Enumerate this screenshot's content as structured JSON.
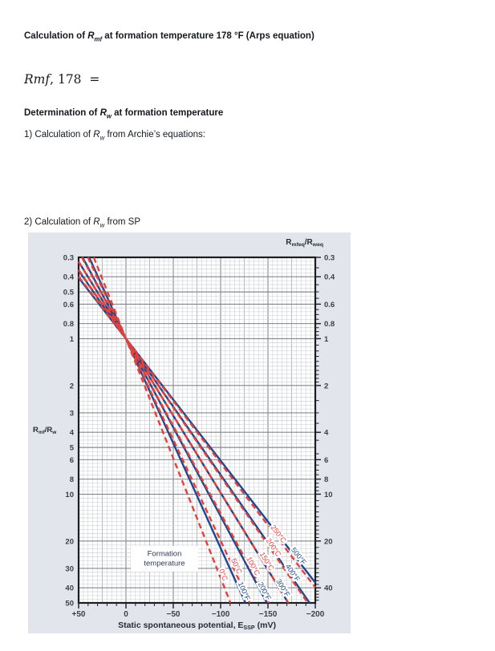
{
  "document": {
    "heading1": [
      {
        "t": "Calculation of "
      },
      {
        "t": "R",
        "i": 1
      },
      {
        "t": "mf",
        "i": 1,
        "sub": 1
      },
      {
        "t": " at formation temperature 178 °F (Arps equation)"
      }
    ],
    "equation": [
      {
        "t": "Rmf",
        "i": 1
      },
      {
        "t": ", 178  ="
      }
    ],
    "heading2": [
      {
        "t": "Determination of "
      },
      {
        "t": "R",
        "i": 1
      },
      {
        "t": "w",
        "i": 1,
        "sub": 1
      },
      {
        "t": " at formation temperature"
      }
    ],
    "item1": [
      {
        "t": "1) Calculation of "
      },
      {
        "t": "R",
        "i": 1
      },
      {
        "t": "w",
        "i": 1,
        "sub": 1
      },
      {
        "t": " from Archie’s equations:"
      }
    ],
    "item2": [
      {
        "t": "2) Calculation of "
      },
      {
        "t": "R",
        "i": 1
      },
      {
        "t": "w",
        "i": 1,
        "sub": 1
      },
      {
        "t": " from SP"
      }
    ]
  },
  "chart_data": {
    "type": "line",
    "model": "E_SSP = -K * log10(Rmfeq/Rweq); every isotherm passes through the convergence point",
    "convergence_point": {
      "x_mV": 0,
      "ratio": 1
    },
    "x_axis": {
      "title_parts": [
        {
          "t": "Static spontaneous potential, E"
        },
        {
          "t": "SSP",
          "sub": 1
        },
        {
          "t": " (mV)"
        }
      ],
      "min": -200,
      "max": 50,
      "major_ticks": [
        50,
        0,
        -50,
        -100,
        -150,
        -200
      ],
      "tick_labels": [
        "+50",
        "0",
        "−50",
        "−100",
        "−150",
        "−200"
      ],
      "minor_step_mV": 10
    },
    "y_axis": {
      "scale": "log",
      "min": 0.3,
      "max": 50,
      "direction": "increases downward",
      "left_title_parts": [
        {
          "t": "R"
        },
        {
          "t": "mf",
          "sub": 1
        },
        {
          "t": "/R"
        },
        {
          "t": "w",
          "sub": 1
        }
      ],
      "right_title_parts": [
        {
          "t": "R"
        },
        {
          "t": "mfeq",
          "sub": 1
        },
        {
          "t": "/R"
        },
        {
          "t": "weq",
          "sub": 1
        }
      ],
      "left_labels": [
        0.3,
        0.4,
        0.5,
        0.6,
        0.8,
        1,
        2,
        3,
        4,
        5,
        6,
        8,
        10,
        20,
        30,
        40,
        50
      ],
      "right_labels": [
        0.3,
        0.4,
        0.6,
        0.8,
        1,
        2,
        4,
        6,
        8,
        10,
        20,
        40
      ]
    },
    "series": [
      {
        "label": "0°C",
        "K": 65,
        "group": "celsius",
        "label_at_ratio": 33
      },
      {
        "label": "50°C",
        "K": 77,
        "group": "celsius",
        "label_at_ratio": 29
      },
      {
        "label": "100°C",
        "K": 89,
        "group": "celsius",
        "label_at_ratio": 29
      },
      {
        "label": "150°C",
        "K": 101,
        "group": "celsius",
        "label_at_ratio": 27
      },
      {
        "label": "200°C",
        "K": 113,
        "group": "celsius",
        "label_at_ratio": 22
      },
      {
        "label": "250°C",
        "K": 125,
        "group": "celsius",
        "label_at_ratio": 18
      },
      {
        "label": "100°F",
        "K": 74.3,
        "group": "fahrenheit",
        "label_at_ratio": 42
      },
      {
        "label": "200°F",
        "K": 87.6,
        "group": "fahrenheit",
        "label_at_ratio": 42
      },
      {
        "label": "300°F",
        "K": 100.9,
        "group": "fahrenheit",
        "label_at_ratio": 40
      },
      {
        "label": "400°F",
        "K": 114.2,
        "group": "fahrenheit",
        "label_at_ratio": 32
      },
      {
        "label": "500°F",
        "K": 127.5,
        "group": "fahrenheit",
        "label_at_ratio": 25
      }
    ],
    "annotation": {
      "line1": "Formation",
      "line2": "temperature"
    },
    "styles": {
      "panel_bg": "#e2e6ec",
      "plot_bg": "#ffffff",
      "grid_minor": "#c8cbcf",
      "grid_mid": "#a6aab0",
      "grid_major": "#84898f",
      "axis_color": "#1b1d21",
      "tick_label_color": "#3b4049",
      "title_color": "#252b36",
      "annotation_color": "#2c3a55",
      "celsius_color": "#e6403b",
      "fahrenheit_color": "#1b4890",
      "celsius_dashed": true
    }
  }
}
